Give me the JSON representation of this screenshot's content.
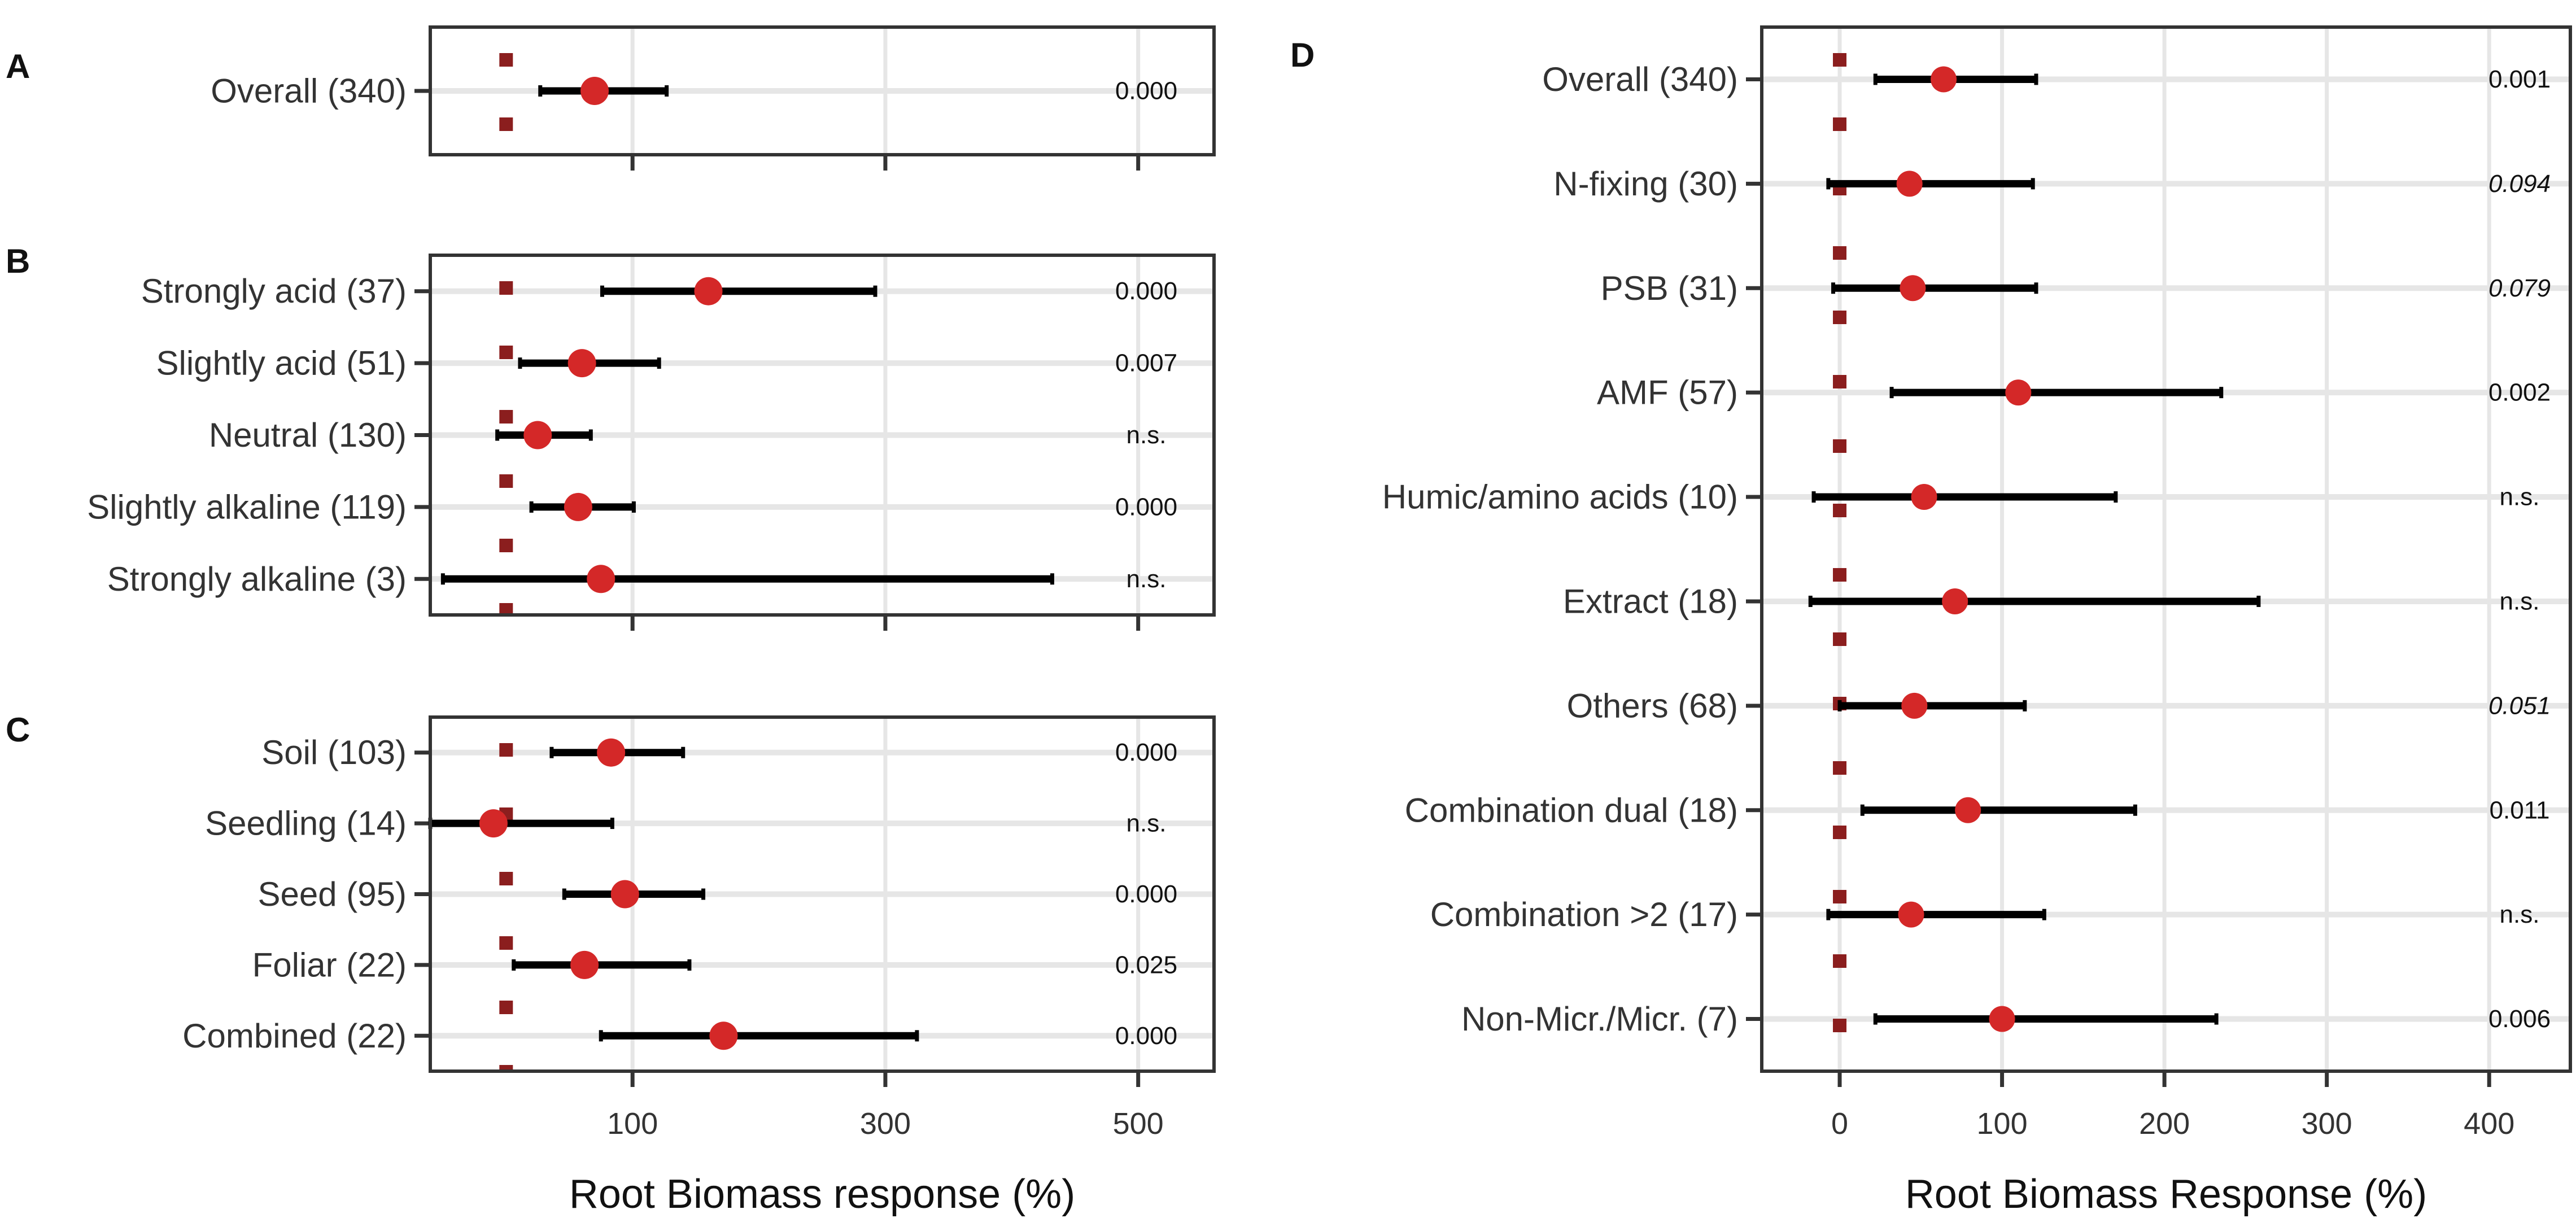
{
  "colors": {
    "point": "#D42828",
    "zero_marker": "#8B1E1E",
    "ci_line": "#000000",
    "grid": "#E6E6E6",
    "frame": "#333333",
    "text": "#333333"
  },
  "chart_data": [
    {
      "type": "forest",
      "panel": "A",
      "xlabel": "",
      "xlim": [
        -60,
        560
      ],
      "xticks": [
        100,
        300,
        500
      ],
      "tick_labels": [],
      "rows": [
        {
          "label": "Overall (340)",
          "mean": 70,
          "lo": 27,
          "hi": 127,
          "p": "0.000",
          "p_italic": false
        }
      ]
    },
    {
      "type": "forest",
      "panel": "B",
      "xlabel": "",
      "xlim": [
        -60,
        560
      ],
      "xticks": [
        100,
        300,
        500
      ],
      "tick_labels": [],
      "rows": [
        {
          "label": "Strongly acid (37)",
          "mean": 160,
          "lo": 76,
          "hi": 292,
          "p": "0.000",
          "p_italic": false
        },
        {
          "label": "Slightly acid (51)",
          "mean": 60,
          "lo": 11,
          "hi": 121,
          "p": "0.007",
          "p_italic": false
        },
        {
          "label": "Neutral (130)",
          "mean": 25,
          "lo": -7,
          "hi": 67,
          "p": "n.s.",
          "p_italic": false
        },
        {
          "label": "Slightly alkaline (119)",
          "mean": 57,
          "lo": 20,
          "hi": 101,
          "p": "0.000",
          "p_italic": false
        },
        {
          "label": "Strongly alkaline (3)",
          "mean": 75,
          "lo": -50,
          "hi": 432,
          "p": "n.s.",
          "p_italic": false
        }
      ]
    },
    {
      "type": "forest",
      "panel": "C",
      "xlabel": "Root Biomass response (%)",
      "xlim": [
        -60,
        560
      ],
      "xticks": [
        100,
        300,
        500
      ],
      "tick_labels": [
        "100",
        "300",
        "500"
      ],
      "rows": [
        {
          "label": "Soil (103)",
          "mean": 83,
          "lo": 36,
          "hi": 140,
          "p": "0.000",
          "p_italic": false
        },
        {
          "label": "Seedling (14)",
          "mean": -10,
          "lo": -60,
          "hi": 84,
          "p": "n.s.",
          "p_italic": false
        },
        {
          "label": "Seed (95)",
          "mean": 94,
          "lo": 46,
          "hi": 156,
          "p": "0.000",
          "p_italic": false
        },
        {
          "label": "Foliar (22)",
          "mean": 62,
          "lo": 6,
          "hi": 145,
          "p": "0.025",
          "p_italic": false
        },
        {
          "label": "Combined (22)",
          "mean": 172,
          "lo": 75,
          "hi": 325,
          "p": "0.000",
          "p_italic": false
        }
      ]
    },
    {
      "type": "forest",
      "panel": "D",
      "xlabel": "Root Biomass Response (%)",
      "xlim": [
        -48,
        450
      ],
      "xticks": [
        0,
        100,
        200,
        300,
        400
      ],
      "tick_labels": [
        "0",
        "100",
        "200",
        "300",
        "400"
      ],
      "rows": [
        {
          "label": "Overall (340)",
          "mean": 64,
          "lo": 22,
          "hi": 121,
          "p": "0.001",
          "p_italic": false
        },
        {
          "label": "N-fixing (30)",
          "mean": 43,
          "lo": -7,
          "hi": 119,
          "p": "0.094",
          "p_italic": true
        },
        {
          "label": "PSB (31)",
          "mean": 45,
          "lo": -4,
          "hi": 121,
          "p": "0.079",
          "p_italic": true
        },
        {
          "label": "AMF (57)",
          "mean": 110,
          "lo": 32,
          "hi": 235,
          "p": "0.002",
          "p_italic": false
        },
        {
          "label": "Humic/amino acids (10)",
          "mean": 52,
          "lo": -16,
          "hi": 170,
          "p": "n.s.",
          "p_italic": false
        },
        {
          "label": "Extract (18)",
          "mean": 71,
          "lo": -18,
          "hi": 258,
          "p": "n.s.",
          "p_italic": false
        },
        {
          "label": "Others (68)",
          "mean": 46,
          "lo": 0,
          "hi": 114,
          "p": "0.051",
          "p_italic": true
        },
        {
          "label": "Combination dual (18)",
          "mean": 79,
          "lo": 14,
          "hi": 182,
          "p": "0.011",
          "p_italic": false
        },
        {
          "label": "Combination >2 (17)",
          "mean": 44,
          "lo": -7,
          "hi": 126,
          "p": "n.s.",
          "p_italic": false
        },
        {
          "label": "Non-Micr./Micr. (7)",
          "mean": 100,
          "lo": 22,
          "hi": 232,
          "p": "0.006",
          "p_italic": false
        }
      ]
    }
  ]
}
